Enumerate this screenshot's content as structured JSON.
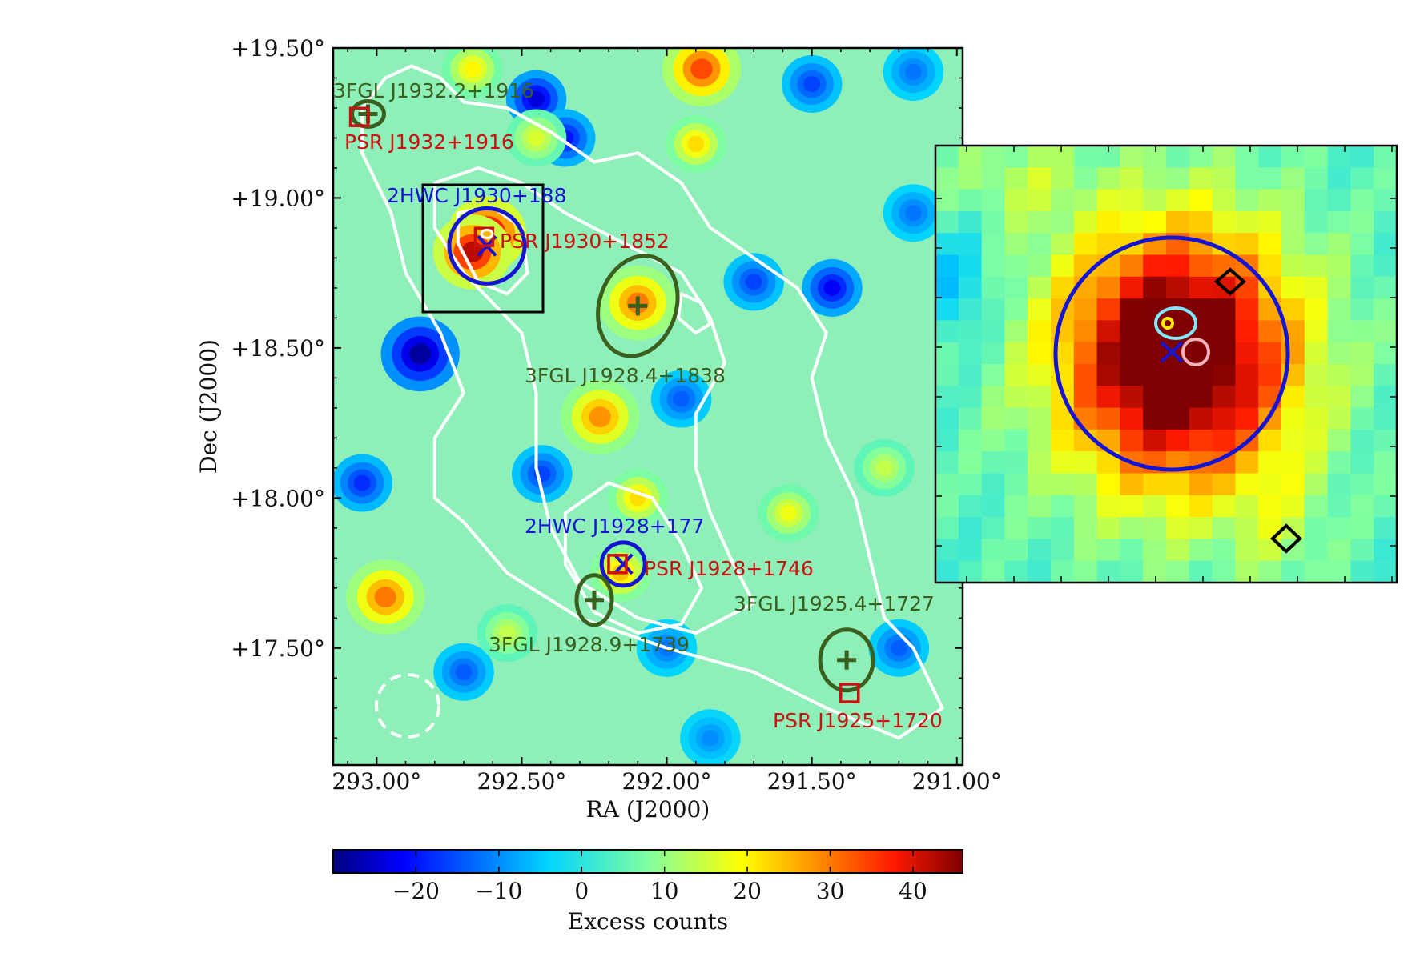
{
  "chart_data": {
    "type": "heatmap",
    "main_panel": {
      "xlabel": "RA (J2000)",
      "ylabel": "Dec (J2000)",
      "x_range": [
        293.15,
        290.98
      ],
      "y_range": [
        17.11,
        19.5
      ],
      "x_ticks": [
        {
          "value": 293.0,
          "label": "293.00°"
        },
        {
          "value": 292.5,
          "label": "292.50°"
        },
        {
          "value": 292.0,
          "label": "292.00°"
        },
        {
          "value": 291.5,
          "label": "291.50°"
        },
        {
          "value": 291.0,
          "label": "291.00°"
        }
      ],
      "y_ticks": [
        {
          "value": 19.5,
          "label": "+19.50°"
        },
        {
          "value": 19.0,
          "label": "+19.00°"
        },
        {
          "value": 18.5,
          "label": "+18.50°"
        },
        {
          "value": 18.0,
          "label": "+18.00°"
        },
        {
          "value": 17.5,
          "label": "+17.50°"
        }
      ],
      "hotspots": [
        {
          "ra": 292.62,
          "dec": 18.88,
          "excess": 45
        },
        {
          "ra": 292.67,
          "dec": 18.82,
          "excess": 42
        },
        {
          "ra": 292.1,
          "dec": 18.65,
          "excess": 30
        },
        {
          "ra": 292.23,
          "dec": 18.27,
          "excess": 28
        },
        {
          "ra": 292.16,
          "dec": 17.75,
          "excess": 24
        },
        {
          "ra": 292.1,
          "dec": 18.0,
          "excess": 22
        },
        {
          "ra": 291.88,
          "dec": 19.43,
          "excess": 34
        },
        {
          "ra": 292.97,
          "dec": 17.67,
          "excess": 30
        },
        {
          "ra": 292.67,
          "dec": 19.43,
          "excess": 20
        },
        {
          "ra": 291.9,
          "dec": 19.18,
          "excess": 22
        },
        {
          "ra": 291.58,
          "dec": 17.95,
          "excess": 18
        },
        {
          "ra": 292.55,
          "dec": 17.55,
          "excess": 14
        },
        {
          "ra": 291.25,
          "dec": 18.1,
          "excess": 14
        },
        {
          "ra": 292.45,
          "dec": 19.2,
          "excess": 16
        }
      ],
      "coldspots": [
        {
          "ra": 292.85,
          "dec": 18.48,
          "excess": -28
        },
        {
          "ra": 292.45,
          "dec": 19.33,
          "excess": -24
        },
        {
          "ra": 292.35,
          "dec": 19.2,
          "excess": -20
        },
        {
          "ra": 291.43,
          "dec": 18.7,
          "excess": -22
        },
        {
          "ra": 291.7,
          "dec": 18.72,
          "excess": -16
        },
        {
          "ra": 292.7,
          "dec": 17.42,
          "excess": -14
        },
        {
          "ra": 293.05,
          "dec": 18.05,
          "excess": -18
        },
        {
          "ra": 291.5,
          "dec": 19.38,
          "excess": -16
        },
        {
          "ra": 291.95,
          "dec": 18.33,
          "excess": -14
        },
        {
          "ra": 292.0,
          "dec": 17.5,
          "excess": -12
        },
        {
          "ra": 291.2,
          "dec": 17.5,
          "excess": -14
        },
        {
          "ra": 292.43,
          "dec": 18.08,
          "excess": -16
        },
        {
          "ra": 291.85,
          "dec": 17.2,
          "excess": -10
        },
        {
          "ra": 291.15,
          "dec": 19.42,
          "excess": -12
        },
        {
          "ra": 291.15,
          "dec": 18.95,
          "excess": -12
        }
      ],
      "contours": [
        [
          [
            292.97,
            19.4
          ],
          [
            292.88,
            19.44
          ],
          [
            292.78,
            19.4
          ],
          [
            292.7,
            19.32
          ],
          [
            292.55,
            19.3
          ],
          [
            292.4,
            19.22
          ],
          [
            292.25,
            19.12
          ],
          [
            292.1,
            19.15
          ],
          [
            291.95,
            19.05
          ],
          [
            291.85,
            18.9
          ],
          [
            291.7,
            18.8
          ],
          [
            291.55,
            18.7
          ],
          [
            291.45,
            18.55
          ],
          [
            291.5,
            18.4
          ],
          [
            291.45,
            18.2
          ],
          [
            291.35,
            18.0
          ],
          [
            291.3,
            17.8
          ],
          [
            291.25,
            17.6
          ],
          [
            291.15,
            17.5
          ],
          [
            291.05,
            17.3
          ],
          [
            291.2,
            17.2
          ],
          [
            291.45,
            17.3
          ],
          [
            291.7,
            17.42
          ],
          [
            292.0,
            17.5
          ],
          [
            292.3,
            17.6
          ],
          [
            292.55,
            17.75
          ],
          [
            292.7,
            17.92
          ],
          [
            292.8,
            18.0
          ],
          [
            292.8,
            18.2
          ],
          [
            292.7,
            18.35
          ],
          [
            292.78,
            18.55
          ],
          [
            292.9,
            18.75
          ],
          [
            292.95,
            18.95
          ],
          [
            293.05,
            19.15
          ],
          [
            293.05,
            19.3
          ],
          [
            292.97,
            19.4
          ]
        ],
        [
          [
            292.8,
            19.05
          ],
          [
            292.65,
            19.1
          ],
          [
            292.5,
            19.05
          ],
          [
            292.35,
            18.95
          ],
          [
            292.15,
            18.85
          ],
          [
            291.95,
            18.75
          ],
          [
            291.85,
            18.6
          ],
          [
            291.8,
            18.45
          ],
          [
            291.9,
            18.28
          ],
          [
            291.9,
            18.1
          ],
          [
            291.85,
            17.95
          ],
          [
            291.78,
            17.8
          ],
          [
            291.7,
            17.65
          ],
          [
            291.9,
            17.55
          ],
          [
            292.1,
            17.6
          ],
          [
            292.3,
            17.72
          ],
          [
            292.4,
            17.9
          ],
          [
            292.45,
            18.1
          ],
          [
            292.45,
            18.35
          ],
          [
            292.5,
            18.55
          ],
          [
            292.7,
            18.75
          ],
          [
            292.8,
            18.9
          ],
          [
            292.8,
            19.05
          ]
        ],
        [
          [
            292.35,
            17.95
          ],
          [
            292.2,
            18.05
          ],
          [
            292.05,
            18.0
          ],
          [
            291.95,
            17.85
          ],
          [
            291.88,
            17.7
          ],
          [
            291.95,
            17.58
          ],
          [
            292.1,
            17.55
          ],
          [
            292.25,
            17.62
          ],
          [
            292.35,
            17.78
          ],
          [
            292.35,
            17.95
          ]
        ],
        [
          [
            292.72,
            18.95
          ],
          [
            292.6,
            18.97
          ],
          [
            292.5,
            18.9
          ],
          [
            292.48,
            18.75
          ],
          [
            292.55,
            18.68
          ],
          [
            292.65,
            18.72
          ],
          [
            292.72,
            18.85
          ],
          [
            292.72,
            18.95
          ]
        ],
        [
          [
            291.95,
            18.68
          ],
          [
            291.88,
            18.65
          ],
          [
            291.85,
            18.58
          ],
          [
            291.9,
            18.55
          ],
          [
            291.96,
            18.6
          ],
          [
            291.95,
            18.68
          ]
        ]
      ],
      "sources": {
        "hawc": [
          {
            "name": "2HWC J1930+188",
            "ra": 292.62,
            "dec": 18.84
          },
          {
            "name": "2HWC J1928+177",
            "ra": 292.15,
            "dec": 17.78
          }
        ],
        "fermi_3fgl": [
          {
            "name": "3FGL J1932.2+1916",
            "ra": 293.03,
            "dec": 19.28
          },
          {
            "name": "3FGL J1928.4+1838",
            "ra": 292.1,
            "dec": 18.64
          },
          {
            "name": "3FGL J1928.9+1739",
            "ra": 292.25,
            "dec": 17.66
          },
          {
            "name": "3FGL J1925.4+1727",
            "ra": 291.38,
            "dec": 17.46
          }
        ],
        "pulsars": [
          {
            "name": "PSR J1932+1916",
            "ra": 293.06,
            "dec": 19.27
          },
          {
            "name": "PSR J1930+1852",
            "ra": 292.63,
            "dec": 18.87
          },
          {
            "name": "PSR J1928+1746",
            "ra": 292.17,
            "dec": 17.78
          },
          {
            "name": "PSR J1925+1720",
            "ra": 291.37,
            "dec": 17.35
          }
        ]
      }
    },
    "colorbar": {
      "label": "Excess counts",
      "range": [
        -30,
        46
      ],
      "ticks": [
        -20,
        -10,
        0,
        10,
        20,
        30,
        40
      ],
      "tick_labels": [
        "−20",
        "−10",
        "0",
        "10",
        "20",
        "30",
        "40"
      ]
    }
  },
  "colors": {
    "hawc": "#1414d2",
    "fermi": "#3a5f1e",
    "pulsar": "#cc1010",
    "contour": "#ffffff",
    "inset_frame": "#000000"
  }
}
